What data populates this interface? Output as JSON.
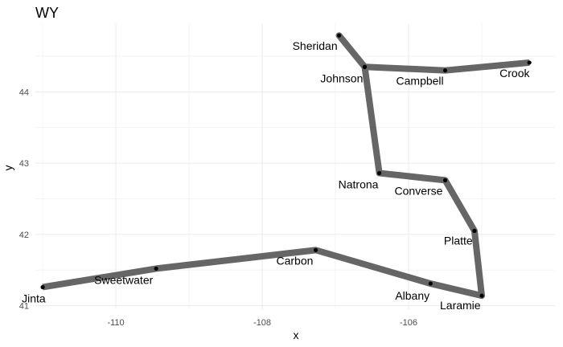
{
  "chart_data": {
    "type": "line",
    "title": "WY",
    "xlabel": "x",
    "ylabel": "y",
    "xlim": [
      -111.1,
      -104.0
    ],
    "ylim": [
      40.95,
      44.95
    ],
    "xticks": [
      -110,
      -108,
      -106
    ],
    "yticks": [
      41,
      42,
      43,
      44
    ],
    "x_minor_ticks": [
      -111,
      -109,
      -107,
      -105
    ],
    "y_minor_ticks": [
      41.5,
      42.5,
      43.5,
      44.5
    ],
    "tick_labels_x": [
      "-110",
      "-108",
      "-106"
    ],
    "tick_labels_y": [
      "41",
      "42",
      "43",
      "44"
    ],
    "grid": true,
    "series": [
      {
        "points": [
          {
            "x": -111.0,
            "y": 41.26,
            "label": "Jinta"
          },
          {
            "x": -109.45,
            "y": 41.52,
            "label": "Sweetwater"
          },
          {
            "x": -107.27,
            "y": 41.78,
            "label": "Carbon"
          },
          {
            "x": -105.7,
            "y": 41.31,
            "label": "Albany"
          },
          {
            "x": -105.0,
            "y": 41.14,
            "label": "Laramie"
          },
          {
            "x": -105.1,
            "y": 42.05,
            "label": "Platte"
          },
          {
            "x": -105.5,
            "y": 42.76,
            "label": "Converse"
          },
          {
            "x": -106.4,
            "y": 42.86,
            "label": "Natrona"
          },
          {
            "x": -106.6,
            "y": 44.35,
            "label": "Johnson"
          },
          {
            "x": -106.95,
            "y": 44.79,
            "label": "Sheridan"
          },
          {
            "x": -106.6,
            "y": 44.35,
            "label": ""
          },
          {
            "x": -105.5,
            "y": 44.3,
            "label": "Campbell"
          },
          {
            "x": -104.35,
            "y": 44.41,
            "label": "Crook"
          }
        ]
      }
    ]
  }
}
